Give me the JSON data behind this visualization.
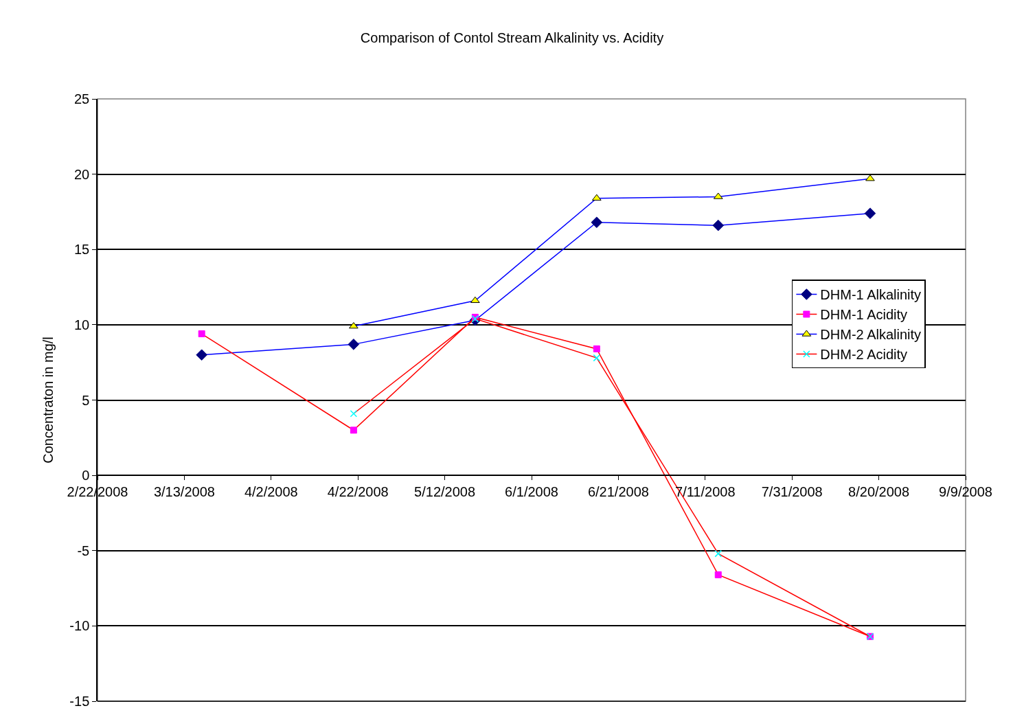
{
  "chart_data": {
    "type": "line",
    "title": "Comparison of Contol Stream Alkalinity vs. Acidity",
    "ylabel": "Concentraton in mg/l",
    "series": [
      {
        "name": "DHM-1 Alkalinity",
        "color": "#0000ff",
        "marker": "diamond",
        "colors": [
          "#000080",
          "#000080",
          "#000080",
          "#000080",
          "#000080",
          "#000080"
        ],
        "x": [
          "2008-03-17",
          "2008-04-21",
          "2008-05-19",
          "2008-06-16",
          "2008-07-14",
          "2008-08-18"
        ],
        "values": [
          8.0,
          8.7,
          10.3,
          16.8,
          16.6,
          17.4
        ]
      },
      {
        "name": "DHM-1 Acidity",
        "color": "#ff0000",
        "marker": "square",
        "colors": [
          "#ff00ff",
          "#ff00ff",
          "#ff00ff",
          "#ff00ff",
          "#ff00ff",
          "#ff00ff"
        ],
        "x": [
          "2008-03-17",
          "2008-04-21",
          "2008-05-19",
          "2008-06-16",
          "2008-07-14",
          "2008-08-18"
        ],
        "values": [
          9.4,
          3.0,
          10.5,
          8.4,
          -6.6,
          -10.7
        ]
      },
      {
        "name": "DHM-2 Alkalinity",
        "color": "#0000ff",
        "marker": "triangle",
        "colors": [
          "#ffff00",
          "#ffff00",
          "#ffff00",
          "#ffff00",
          "#ffff00"
        ],
        "x": [
          "2008-04-21",
          "2008-05-19",
          "2008-06-16",
          "2008-07-14",
          "2008-08-18"
        ],
        "values": [
          9.9,
          11.6,
          18.4,
          18.5,
          19.7
        ]
      },
      {
        "name": "DHM-2 Acidity",
        "color": "#ff0000",
        "marker": "cross",
        "colors": [
          "#00ffff",
          "#00ffff",
          "#00ffff",
          "#00ffff",
          "#00ffff"
        ],
        "x": [
          "2008-04-21",
          "2008-05-19",
          "2008-06-16",
          "2008-07-14",
          "2008-08-18"
        ],
        "values": [
          4.1,
          10.4,
          7.8,
          -5.2,
          -10.7
        ]
      }
    ],
    "xlim": [
      "2008-02-22",
      "2008-09-09"
    ],
    "xticks": [
      {
        "value": "2008-02-22",
        "label": "2/22/2008"
      },
      {
        "value": "2008-03-13",
        "label": "3/13/2008"
      },
      {
        "value": "2008-04-02",
        "label": "4/2/2008"
      },
      {
        "value": "2008-04-22",
        "label": "4/22/2008"
      },
      {
        "value": "2008-05-12",
        "label": "5/12/2008"
      },
      {
        "value": "2008-06-01",
        "label": "6/1/2008"
      },
      {
        "value": "2008-06-21",
        "label": "6/21/2008"
      },
      {
        "value": "2008-07-11",
        "label": "7/11/2008"
      },
      {
        "value": "2008-07-31",
        "label": "7/31/2008"
      },
      {
        "value": "2008-08-20",
        "label": "8/20/2008"
      },
      {
        "value": "2008-09-09",
        "label": "9/9/2008"
      }
    ],
    "ylim": [
      -15,
      25
    ],
    "yticks": [
      -15,
      -10,
      -5,
      0,
      5,
      10,
      15,
      20,
      25
    ],
    "grid": "y",
    "legend": "right",
    "line_style": "solid"
  }
}
